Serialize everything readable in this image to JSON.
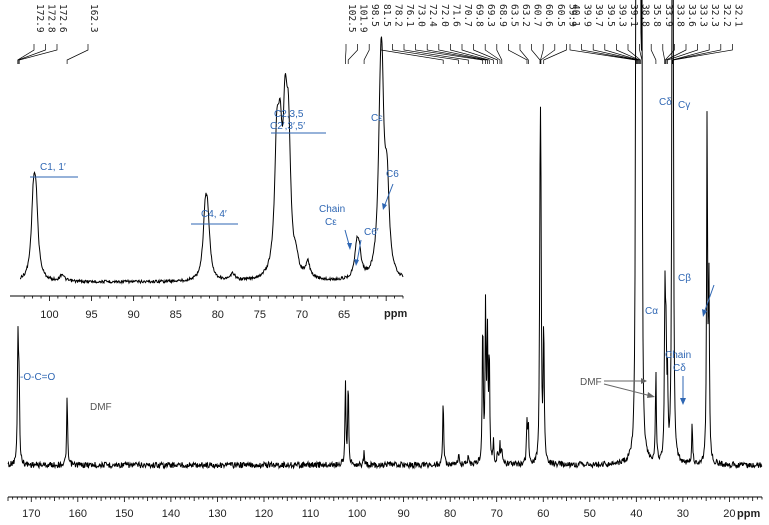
{
  "chart_data": {
    "type": "line",
    "title": "",
    "axis_unit": "ppm",
    "main": {
      "xlim": [
        175,
        13
      ],
      "xticks": [
        170,
        160,
        150,
        140,
        130,
        120,
        110,
        100,
        90,
        80,
        70,
        60,
        50,
        40,
        30,
        20
      ],
      "ylim": [
        0,
        1
      ],
      "peaks": [
        {
          "x": 172.9,
          "h": 0.18
        },
        {
          "x": 172.8,
          "h": 0.19
        },
        {
          "x": 172.6,
          "h": 0.17
        },
        {
          "x": 162.3,
          "h": 0.17
        },
        {
          "x": 102.5,
          "h": 0.2
        },
        {
          "x": 101.9,
          "h": 0.21
        },
        {
          "x": 98.5,
          "h": 0.03
        },
        {
          "x": 81.5,
          "h": 0.17
        },
        {
          "x": 78.2,
          "h": 0.03
        },
        {
          "x": 76.1,
          "h": 0.02
        },
        {
          "x": 73.0,
          "h": 0.36
        },
        {
          "x": 72.4,
          "h": 0.38
        },
        {
          "x": 72.0,
          "h": 0.32
        },
        {
          "x": 71.6,
          "h": 0.28
        },
        {
          "x": 70.7,
          "h": 0.05
        },
        {
          "x": 69.8,
          "h": 0.03
        },
        {
          "x": 69.3,
          "h": 0.05
        },
        {
          "x": 68.9,
          "h": 0.04
        },
        {
          "x": 63.5,
          "h": 0.11
        },
        {
          "x": 63.2,
          "h": 0.09
        },
        {
          "x": 60.7,
          "h": 0.38
        },
        {
          "x": 60.6,
          "h": 0.4
        },
        {
          "x": 60.5,
          "h": 0.42
        },
        {
          "x": 59.9,
          "h": 0.35
        },
        {
          "x": 40.1,
          "h": 0.98
        },
        {
          "x": 39.9,
          "h": 0.98
        },
        {
          "x": 39.7,
          "h": 0.98
        },
        {
          "x": 39.5,
          "h": 0.98
        },
        {
          "x": 39.3,
          "h": 0.98
        },
        {
          "x": 39.1,
          "h": 0.98
        },
        {
          "x": 38.8,
          "h": 0.98
        },
        {
          "x": 35.8,
          "h": 0.22
        },
        {
          "x": 33.9,
          "h": 0.2
        },
        {
          "x": 33.8,
          "h": 0.28
        },
        {
          "x": 33.6,
          "h": 0.24
        },
        {
          "x": 33.3,
          "h": 0.18
        },
        {
          "x": 32.3,
          "h": 0.78
        },
        {
          "x": 32.2,
          "h": 0.82
        },
        {
          "x": 32.1,
          "h": 0.78
        },
        {
          "x": 28.0,
          "h": 0.1
        },
        {
          "x": 24.8,
          "h": 0.86
        },
        {
          "x": 24.4,
          "h": 0.44
        }
      ]
    },
    "inset": {
      "xlim": [
        103.5,
        58
      ],
      "xticks": [
        100,
        95,
        90,
        85,
        80,
        75,
        70,
        65
      ],
      "peaks": [
        {
          "x": 101.9,
          "h": 0.42
        },
        {
          "x": 101.6,
          "h": 0.38
        },
        {
          "x": 98.5,
          "h": 0.04
        },
        {
          "x": 81.5,
          "h": 0.34
        },
        {
          "x": 81.2,
          "h": 0.3
        },
        {
          "x": 78.2,
          "h": 0.04
        },
        {
          "x": 73.0,
          "h": 0.68
        },
        {
          "x": 72.6,
          "h": 0.62
        },
        {
          "x": 72.0,
          "h": 0.78
        },
        {
          "x": 71.6,
          "h": 0.72
        },
        {
          "x": 70.7,
          "h": 0.08
        },
        {
          "x": 69.3,
          "h": 0.09
        },
        {
          "x": 63.5,
          "h": 0.17
        },
        {
          "x": 63.2,
          "h": 0.13
        },
        {
          "x": 60.7,
          "h": 0.62
        },
        {
          "x": 60.5,
          "h": 0.88
        },
        {
          "x": 59.9,
          "h": 0.5
        }
      ]
    },
    "peak_labels": [
      "172.9",
      "172.8",
      "172.6",
      "162.3",
      "102.5",
      "101.9",
      "98.5",
      "81.5",
      "78.2",
      "76.1",
      "73.0",
      "72.4",
      "72.0",
      "71.6",
      "70.7",
      "69.8",
      "69.3",
      "68.9",
      "63.5",
      "63.2",
      "60.7",
      "60.6",
      "60.5",
      "59.9",
      "40.1",
      "39.9",
      "39.7",
      "39.5",
      "39.3",
      "39.1",
      "38.8",
      "35.8",
      "33.9",
      "33.8",
      "33.6",
      "33.3",
      "32.3",
      "32.2",
      "32.1"
    ],
    "annotations": {
      "carbonyl": "-O-C=O",
      "dmf_main": "DMF",
      "dmf_right": "DMF",
      "c_alpha": "Cα",
      "c_delta": "Cδ",
      "c_gamma": "Cγ",
      "c_beta": "Cβ",
      "chain": "Chain",
      "chain_c_delta": "Cδ",
      "inset_c11": "C1, 1′",
      "inset_c44": "C4, 4′",
      "inset_c235": "C2,3,5",
      "inset_c235p": "C2′,3′,5′",
      "inset_chain": "Chain",
      "inset_chain_ce": "Cε",
      "inset_c6p": "C6′",
      "inset_ce": "Cε",
      "inset_c6": "C6"
    },
    "colors": {
      "spectrum": "#000000",
      "annotation": "#2e66b3",
      "dmf": "#555555"
    }
  }
}
